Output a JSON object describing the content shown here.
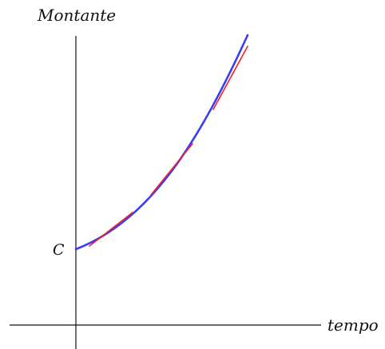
{
  "labels": {
    "y_axis": "Montante",
    "x_axis": "tempo",
    "intercept": "C"
  },
  "colors": {
    "axis": "#111111",
    "curve": "#3b3bf5",
    "tangent": "#ef1f2a"
  },
  "curve": {
    "description_type": "exponential-growth",
    "tangent_segment_count": 4
  }
}
